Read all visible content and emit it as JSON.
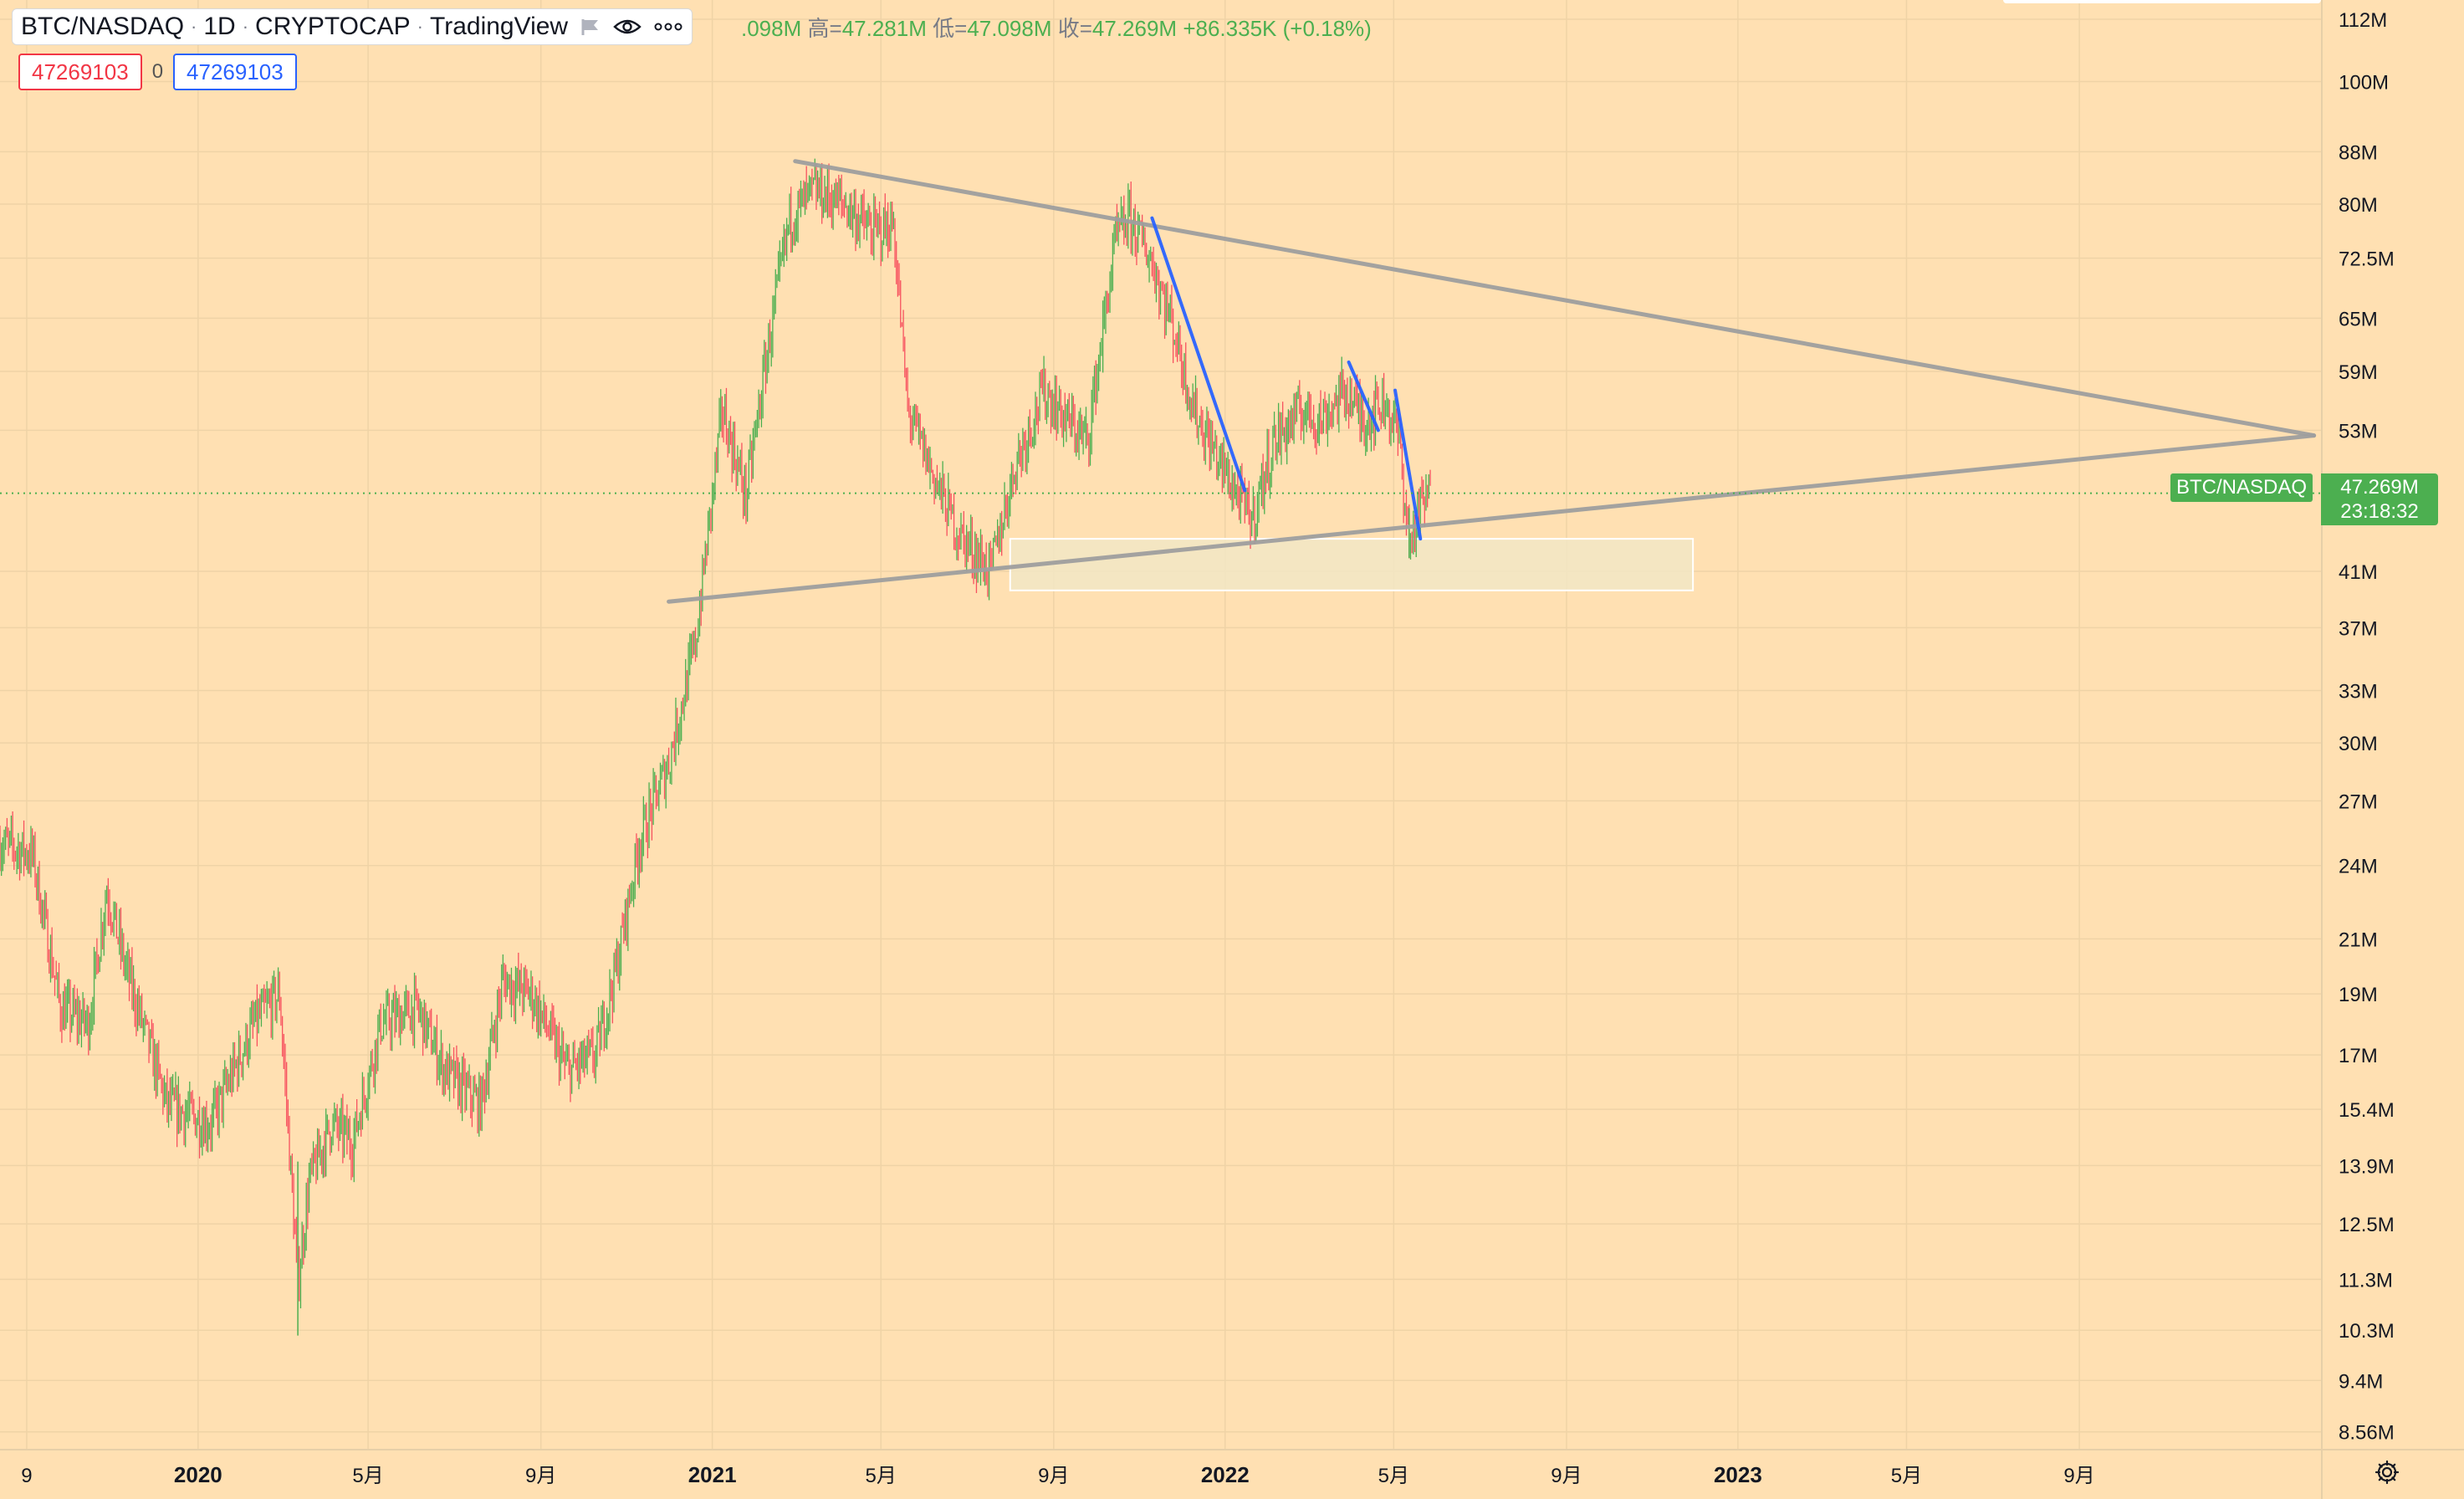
{
  "legend": {
    "symbol": "BTC/NASDAQ",
    "interval": "1D",
    "source": "CRYPTOCAP",
    "provider": "TradingView"
  },
  "ohlc": {
    "open_val": ".098M",
    "high_label": "高=",
    "high_val": "47.281M",
    "low_label": "低=",
    "low_val": "47.098M",
    "close_label": "收=",
    "close_val": "47.269M",
    "change": "+86.335K (+0.18%)"
  },
  "position": {
    "sell": "47269103",
    "spread": "0",
    "buy": "47269103"
  },
  "price_tag": {
    "symbol": "BTC/NASDAQ",
    "price": "47.269M",
    "countdown": "23:18:32"
  },
  "colors": {
    "background": "#ffe0b2",
    "up": "#4caf50",
    "down": "#f7525f",
    "trendline": "#9e9e9e",
    "downtrend": "#2962ff",
    "zone": "#f2e6c4"
  },
  "chart_data": {
    "type": "candlestick",
    "scale": "log",
    "grid": true,
    "x_tick_labels": [
      {
        "date": "2019-09-01",
        "label": "9"
      },
      {
        "date": "2020-01-01",
        "label": "2020"
      },
      {
        "date": "2020-05-01",
        "label": "5月"
      },
      {
        "date": "2020-09-01",
        "label": "9月"
      },
      {
        "date": "2021-01-01",
        "label": "2021"
      },
      {
        "date": "2021-05-01",
        "label": "5月"
      },
      {
        "date": "2021-09-01",
        "label": "9月"
      },
      {
        "date": "2022-01-01",
        "label": "2022"
      },
      {
        "date": "2022-05-01",
        "label": "5月"
      },
      {
        "date": "2022-09-01",
        "label": "9月"
      },
      {
        "date": "2023-01-01",
        "label": "2023"
      },
      {
        "date": "2023-05-01",
        "label": "5月"
      },
      {
        "date": "2023-09-01",
        "label": "9月"
      }
    ],
    "y_ticks": [
      {
        "value": 112000000,
        "label": "112M"
      },
      {
        "value": 100000000,
        "label": "100M"
      },
      {
        "value": 88000000,
        "label": "88M"
      },
      {
        "value": 80000000,
        "label": "80M"
      },
      {
        "value": 72500000,
        "label": "72.5M"
      },
      {
        "value": 65000000,
        "label": "65M"
      },
      {
        "value": 59000000,
        "label": "59M"
      },
      {
        "value": 53000000,
        "label": "53M"
      },
      {
        "value": 41000000,
        "label": "41M"
      },
      {
        "value": 37000000,
        "label": "37M"
      },
      {
        "value": 33000000,
        "label": "33M"
      },
      {
        "value": 30000000,
        "label": "30M"
      },
      {
        "value": 27000000,
        "label": "27M"
      },
      {
        "value": 24000000,
        "label": "24M"
      },
      {
        "value": 21000000,
        "label": "21M"
      },
      {
        "value": 19000000,
        "label": "19M"
      },
      {
        "value": 17000000,
        "label": "17M"
      },
      {
        "value": 15400000,
        "label": "15.4M"
      },
      {
        "value": 13900000,
        "label": "13.9M"
      },
      {
        "value": 12500000,
        "label": "12.5M"
      },
      {
        "value": 11300000,
        "label": "11.3M"
      },
      {
        "value": 10300000,
        "label": "10.3M"
      },
      {
        "value": 9400000,
        "label": "9.4M"
      },
      {
        "value": 8560000,
        "label": "8.56M"
      }
    ],
    "x_range": [
      "2019-08-13",
      "2024-02-20"
    ],
    "y_range": [
      8300000,
      116000000
    ],
    "last_price": 47269000,
    "price_path": [
      [
        "2019-08-13",
        25000000
      ],
      [
        "2019-09-05",
        24500000
      ],
      [
        "2019-09-25",
        18500000
      ],
      [
        "2019-10-15",
        18000000
      ],
      [
        "2019-10-28",
        23000000
      ],
      [
        "2019-11-10",
        20000000
      ],
      [
        "2019-12-10",
        15500000
      ],
      [
        "2020-01-10",
        15000000
      ],
      [
        "2020-02-10",
        18000000
      ],
      [
        "2020-02-28",
        19000000
      ],
      [
        "2020-03-12",
        11200000
      ],
      [
        "2020-03-20",
        13500000
      ],
      [
        "2020-04-05",
        15000000
      ],
      [
        "2020-04-20",
        14500000
      ],
      [
        "2020-05-10",
        18000000
      ],
      [
        "2020-06-05",
        18500000
      ],
      [
        "2020-06-25",
        16500000
      ],
      [
        "2020-07-20",
        15500000
      ],
      [
        "2020-08-05",
        19500000
      ],
      [
        "2020-08-25",
        19000000
      ],
      [
        "2020-09-20",
        16500000
      ],
      [
        "2020-10-10",
        17000000
      ],
      [
        "2020-10-25",
        20000000
      ],
      [
        "2020-11-10",
        25000000
      ],
      [
        "2020-12-01",
        29000000
      ],
      [
        "2020-12-20",
        36000000
      ],
      [
        "2021-01-08",
        55000000
      ],
      [
        "2021-01-25",
        47000000
      ],
      [
        "2021-02-10",
        62000000
      ],
      [
        "2021-02-25",
        78000000
      ],
      [
        "2021-03-15",
        82000000
      ],
      [
        "2021-04-05",
        80000000
      ],
      [
        "2021-04-25",
        76000000
      ],
      [
        "2021-05-10",
        77000000
      ],
      [
        "2021-05-20",
        55000000
      ],
      [
        "2021-06-10",
        48000000
      ],
      [
        "2021-06-25",
        44000000
      ],
      [
        "2021-07-18",
        41000000
      ],
      [
        "2021-08-05",
        50000000
      ],
      [
        "2021-08-25",
        57000000
      ],
      [
        "2021-09-10",
        54000000
      ],
      [
        "2021-09-25",
        52000000
      ],
      [
        "2021-10-15",
        75000000
      ],
      [
        "2021-10-25",
        78000000
      ],
      [
        "2021-11-10",
        72000000
      ],
      [
        "2021-11-25",
        64000000
      ],
      [
        "2021-12-10",
        55000000
      ],
      [
        "2021-12-28",
        50000000
      ],
      [
        "2022-01-20",
        45000000
      ],
      [
        "2022-02-05",
        52000000
      ],
      [
        "2022-02-25",
        55000000
      ],
      [
        "2022-03-10",
        54000000
      ],
      [
        "2022-03-28",
        57000000
      ],
      [
        "2022-04-10",
        54000000
      ],
      [
        "2022-04-25",
        56000000
      ],
      [
        "2022-05-05",
        52000000
      ],
      [
        "2022-05-12",
        43000000
      ],
      [
        "2022-05-20",
        46000000
      ],
      [
        "2022-05-27",
        47269000
      ]
    ],
    "annotations": {
      "upper_trendline": [
        [
          "2021-03-01",
          86500000
        ],
        [
          "2024-02-15",
          52500000
        ]
      ],
      "lower_trendline": [
        [
          "2020-12-01",
          38800000
        ],
        [
          "2024-02-15",
          52500000
        ]
      ],
      "downtrend_1": [
        [
          "2021-11-10",
          78000000
        ],
        [
          "2022-01-15",
          47500000
        ]
      ],
      "downtrend_2": [
        [
          "2022-03-30",
          60000000
        ],
        [
          "2022-04-20",
          53000000
        ]
      ],
      "downtrend_3": [
        [
          "2022-05-02",
          57000000
        ],
        [
          "2022-05-20",
          43500000
        ]
      ],
      "support_zone": {
        "from": "2021-08-01",
        "to": "2022-11-30",
        "top": 43500000,
        "bottom": 39600000
      }
    }
  }
}
